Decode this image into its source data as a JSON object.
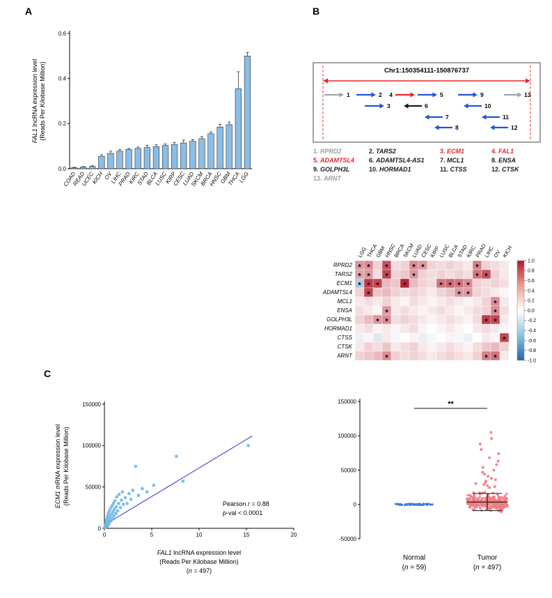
{
  "panels": {
    "a": "A",
    "b": "B",
    "c": "C"
  },
  "colors": {
    "bar_fill": "#8bbde6",
    "bar_edge": "#2b2b2b",
    "scatter_point": "#74b7e6",
    "regression_line": "#5050dd",
    "normal_point": "#3f7fd4",
    "tumor_point": "#f6898f",
    "tumor_point_edge": "#e2606b",
    "accent_red": "#e8262d",
    "accent_gray": "#a3a3a3",
    "accent_blue": "#2255d4",
    "accent_black": "#1a1a1a",
    "heat_pos": "#b2182b",
    "heat_neg": "#2166ac"
  },
  "chart_data": [
    {
      "id": "panel_a_bar",
      "type": "bar",
      "ylabel_italic": "FAL1",
      "ylabel_rest": " lncRNA expression level",
      "ylabel_line2": "(Reads Per Kilobase Million)",
      "ylim": [
        0,
        0.6
      ],
      "yticks": [
        0,
        0.2,
        0.4,
        0.6
      ],
      "categories": [
        "COAD",
        "READ",
        "UCEC",
        "KICH",
        "OV",
        "LIHC",
        "PRAD",
        "KIRC",
        "STAD",
        "BLCA",
        "LUSC",
        "KIRP",
        "CESC",
        "LUAD",
        "SKCM",
        "BRCA",
        "HNSC",
        "GBM",
        "THCA",
        "LGG"
      ],
      "values": [
        0.004,
        0.007,
        0.01,
        0.055,
        0.068,
        0.078,
        0.085,
        0.09,
        0.094,
        0.098,
        0.103,
        0.108,
        0.114,
        0.122,
        0.133,
        0.155,
        0.185,
        0.195,
        0.355,
        0.5
      ],
      "errors": [
        0.002,
        0.002,
        0.003,
        0.007,
        0.01,
        0.007,
        0.005,
        0.006,
        0.01,
        0.008,
        0.007,
        0.009,
        0.013,
        0.007,
        0.009,
        0.008,
        0.012,
        0.012,
        0.075,
        0.015
      ]
    },
    {
      "id": "locus",
      "type": "diagram",
      "title": "Chr1:150354111-150876737",
      "region": {
        "x_left": 16,
        "x_right": 314,
        "arrow_y": 28,
        "label_y": 16,
        "dash_top": 6,
        "dash_bottom": 112
      },
      "arrows": [
        {
          "num": "1",
          "color": "gray",
          "x1": 18,
          "x2": 46,
          "y": 48,
          "lx": 50
        },
        {
          "num": "2",
          "color": "blue",
          "x1": 64,
          "x2": 92,
          "y": 48,
          "lx": 96
        },
        {
          "num": "4",
          "color": "red",
          "x1": 120,
          "x2": 148,
          "y": 48,
          "lx": 116,
          "anchor": "end"
        },
        {
          "num": "5",
          "color": "blue",
          "x1": 152,
          "x2": 180,
          "y": 48,
          "lx": 184
        },
        {
          "num": "9",
          "color": "blue",
          "x1": 210,
          "x2": 238,
          "y": 48,
          "lx": 242
        },
        {
          "num": "13",
          "color": "gray",
          "x1": 276,
          "x2": 302,
          "y": 48,
          "lx": 305
        },
        {
          "num": "3",
          "color": "blue",
          "x1": 76,
          "x2": 104,
          "y": 64,
          "lx": 108
        },
        {
          "num": "6",
          "color": "black",
          "x1": 158,
          "x2": 132,
          "y": 64,
          "lx": 162
        },
        {
          "num": "10",
          "color": "blue",
          "x1": 244,
          "x2": 218,
          "y": 64,
          "lx": 248
        },
        {
          "num": "7",
          "color": "blue",
          "x1": 188,
          "x2": 162,
          "y": 80,
          "lx": 192
        },
        {
          "num": "11",
          "color": "blue",
          "x1": 270,
          "x2": 244,
          "y": 80,
          "lx": 274
        },
        {
          "num": "8",
          "color": "blue",
          "x1": 202,
          "x2": 176,
          "y": 95,
          "lx": 206
        },
        {
          "num": "12",
          "color": "blue",
          "x1": 282,
          "x2": 256,
          "y": 95,
          "lx": 286
        }
      ],
      "genes": [
        {
          "num": "1.",
          "name": "RPRD2",
          "color": "#9b9b9b"
        },
        {
          "num": "2.",
          "name": "TARS2",
          "color": "#1a1a1a"
        },
        {
          "num": "3.",
          "name": "ECM1",
          "color": "#e8262d"
        },
        {
          "num": "4.",
          "name": "FAL1",
          "color": "#e8262d"
        },
        {
          "num": "5.",
          "name": "ADAMTSL4",
          "color": "#e8262d"
        },
        {
          "num": "6.",
          "name": "ADAMTSL4-AS1",
          "color": "#1a1a1a"
        },
        {
          "num": "7.",
          "name": "MCL1",
          "color": "#1a1a1a"
        },
        {
          "num": "8.",
          "name": "ENSA",
          "color": "#1a1a1a"
        },
        {
          "num": "9.",
          "name": "GOLPH3L",
          "color": "#1a1a1a"
        },
        {
          "num": "10.",
          "name": "HORMAD1",
          "color": "#1a1a1a"
        },
        {
          "num": "11.",
          "name": "CTSS",
          "color": "#1a1a1a"
        },
        {
          "num": "12.",
          "name": "CTSK",
          "color": "#1a1a1a"
        },
        {
          "num": "13.",
          "name": "ARNT",
          "color": "#9b9b9b"
        }
      ]
    },
    {
      "id": "heatmap",
      "type": "heatmap",
      "cols": [
        "LGG",
        "THCA",
        "GBM",
        "HNSC",
        "BRCA",
        "SKCM",
        "LUAD",
        "CESC",
        "KIRP",
        "LUSC",
        "BLCA",
        "STAD",
        "KIRC",
        "PRAD",
        "LIHC",
        "OV",
        "KICH"
      ],
      "rows": [
        "RPRD2",
        "TARS2",
        "ECM1",
        "ADAMTSL4",
        "MCL1",
        "ENSA",
        "GOLPH3L",
        "HORMAD1",
        "CTSS",
        "CTSK",
        "ARNT"
      ],
      "values": [
        [
          0.45,
          0.5,
          0.2,
          0.75,
          0.15,
          0.2,
          0.5,
          0.45,
          0.2,
          0.15,
          0.2,
          0.15,
          0.1,
          0.55,
          0.2,
          0.15,
          0.1
        ],
        [
          0.4,
          0.45,
          0.15,
          0.8,
          0.2,
          0.25,
          0.45,
          0.2,
          0.15,
          0.2,
          0.15,
          0.2,
          0.15,
          0.6,
          0.75,
          0.2,
          0.1
        ],
        [
          -0.35,
          0.85,
          0.8,
          0.3,
          0.25,
          0.95,
          0.3,
          0.2,
          0.15,
          0.6,
          0.65,
          0.6,
          0.5,
          0.2,
          0.15,
          0.2,
          0.15
        ],
        [
          0.2,
          0.8,
          0.25,
          0.3,
          0.2,
          0.15,
          0.2,
          0.15,
          0.1,
          0.2,
          0.25,
          0.45,
          0.45,
          0.2,
          0.15,
          0.1,
          0.05
        ],
        [
          0.1,
          0.15,
          0.1,
          0.2,
          0.1,
          0.05,
          0.15,
          0.1,
          0.05,
          0.1,
          0.15,
          0.1,
          0.05,
          0.1,
          0.2,
          0.5,
          0.1
        ],
        [
          0.15,
          0.1,
          0.05,
          0.45,
          0.1,
          0.15,
          0.1,
          0.05,
          0.1,
          0.15,
          0.1,
          0.05,
          0.1,
          0.15,
          0.2,
          0.5,
          0.15
        ],
        [
          0.2,
          0.3,
          0.45,
          0.5,
          0.15,
          0.2,
          0.15,
          0.1,
          0.05,
          0.1,
          0.15,
          0.1,
          0.05,
          0.15,
          0.85,
          0.8,
          0.1
        ],
        [
          0.1,
          0.15,
          0.05,
          0.1,
          0.05,
          0.1,
          0.15,
          0.05,
          0.0,
          0.05,
          0.1,
          0.05,
          0.0,
          0.1,
          0.15,
          0.1,
          0.05
        ],
        [
          -0.1,
          0.05,
          -0.15,
          0.1,
          -0.05,
          0.0,
          0.05,
          -0.1,
          -0.05,
          0.0,
          0.05,
          -0.05,
          -0.1,
          0.0,
          0.1,
          0.05,
          0.8
        ],
        [
          0.1,
          0.2,
          0.15,
          0.25,
          0.1,
          0.15,
          0.2,
          0.1,
          0.05,
          0.1,
          0.15,
          0.1,
          0.05,
          0.15,
          0.25,
          0.3,
          0.2
        ],
        [
          0.2,
          0.25,
          0.3,
          0.5,
          0.2,
          0.15,
          0.2,
          0.15,
          0.1,
          0.15,
          0.2,
          0.15,
          0.1,
          0.2,
          0.55,
          0.6,
          0.1
        ]
      ],
      "stars": [
        [
          0,
          1,
          3,
          6,
          7,
          13
        ],
        [
          0,
          1,
          3,
          6,
          13,
          14
        ],
        [
          0,
          1,
          2,
          5,
          9,
          10,
          11,
          12
        ],
        [
          1,
          11,
          12
        ],
        [
          15
        ],
        [
          3,
          15
        ],
        [
          2,
          3,
          14,
          15
        ],
        [],
        [
          16
        ],
        [],
        [
          3,
          14,
          15
        ]
      ],
      "colorbar_ticks": [
        1.0,
        0.8,
        0.6,
        0.4,
        0.2,
        0.0,
        -0.2,
        -0.4,
        -0.6,
        -0.8,
        -1.0
      ],
      "vrange": [
        -1,
        1
      ]
    },
    {
      "id": "scatter",
      "type": "scatter",
      "ylabel_italic": "ECM1",
      "ylabel_rest": " mRNA expression level",
      "ylabel_line2": "(Reads Per Kilobase Million)",
      "xlabel_italic": "FAL1",
      "xlabel_rest": " lncRNA expression level",
      "xlabel_line2": "(Reads Per Kilobase Million)",
      "n_italic": "n",
      "n_value": "497",
      "xlim": [
        0,
        20
      ],
      "ylim": [
        0,
        150000
      ],
      "xticks": [
        0,
        5,
        10,
        15,
        20
      ],
      "yticks": [
        0,
        50000,
        100000,
        150000
      ],
      "annotation": {
        "pearson_pre": "Pearson ",
        "r_italic": "r",
        "r_post": " = 0.88",
        "p_italic": "p",
        "p_post": "-val < 0.0001"
      },
      "regression_line": [
        [
          0,
          4000
        ],
        [
          15.6,
          111500
        ]
      ],
      "points": [
        [
          0.05,
          800
        ],
        [
          0.08,
          2000
        ],
        [
          0.1,
          1200
        ],
        [
          0.12,
          4000
        ],
        [
          0.15,
          2600
        ],
        [
          0.18,
          7000
        ],
        [
          0.2,
          1800
        ],
        [
          0.22,
          9500
        ],
        [
          0.25,
          4200
        ],
        [
          0.28,
          12000
        ],
        [
          0.3,
          2400
        ],
        [
          0.32,
          6500
        ],
        [
          0.35,
          15000
        ],
        [
          0.38,
          3600
        ],
        [
          0.4,
          8800
        ],
        [
          0.42,
          18000
        ],
        [
          0.45,
          5400
        ],
        [
          0.5,
          11000
        ],
        [
          0.52,
          21000
        ],
        [
          0.55,
          7400
        ],
        [
          0.6,
          14000
        ],
        [
          0.65,
          24000
        ],
        [
          0.7,
          9000
        ],
        [
          0.75,
          17000
        ],
        [
          0.8,
          27000
        ],
        [
          0.85,
          12000
        ],
        [
          0.9,
          20000
        ],
        [
          0.95,
          30000
        ],
        [
          1.0,
          15000
        ],
        [
          1.05,
          23000
        ],
        [
          1.1,
          33000
        ],
        [
          1.2,
          18000
        ],
        [
          1.25,
          26000
        ],
        [
          1.3,
          38000
        ],
        [
          1.4,
          21000
        ],
        [
          1.5,
          30000
        ],
        [
          1.55,
          41000
        ],
        [
          1.7,
          25000
        ],
        [
          1.8,
          34000
        ],
        [
          1.9,
          44000
        ],
        [
          2.0,
          29000
        ],
        [
          2.2,
          37000
        ],
        [
          2.4,
          30000
        ],
        [
          2.6,
          42000
        ],
        [
          2.8,
          35000
        ],
        [
          3.0,
          46000
        ],
        [
          3.3,
          75000
        ],
        [
          3.6,
          40000
        ],
        [
          4.0,
          48000
        ],
        [
          4.5,
          44000
        ],
        [
          5.2,
          52000
        ],
        [
          7.6,
          87000
        ],
        [
          8.3,
          57000
        ],
        [
          15.2,
          100000
        ]
      ]
    },
    {
      "id": "strip",
      "type": "scatter",
      "ylim": [
        -50000,
        150000
      ],
      "yticks": [
        -50000,
        0,
        50000,
        100000,
        150000
      ],
      "groups": [
        {
          "name": "Normal",
          "n": "59"
        },
        {
          "name": "Tumor",
          "n": "497"
        }
      ],
      "normal": {
        "count": 59,
        "y_center": 0,
        "y_spread": 1800
      },
      "tumor": {
        "cluster_count": 300,
        "cluster_mean": 3000,
        "cluster_sd": 9000,
        "outliers": [
          105000,
          96000,
          88000,
          80000,
          74000,
          68000,
          63000,
          58000,
          54000,
          50000,
          47000,
          44000,
          41000,
          38000,
          36000,
          34000,
          32000,
          30500,
          29000,
          27500,
          26000,
          24500
        ],
        "error_bar": {
          "low": -9000,
          "mean": 3500,
          "high": 16000
        }
      },
      "significance": {
        "label": "**",
        "y": 140000
      }
    }
  ]
}
